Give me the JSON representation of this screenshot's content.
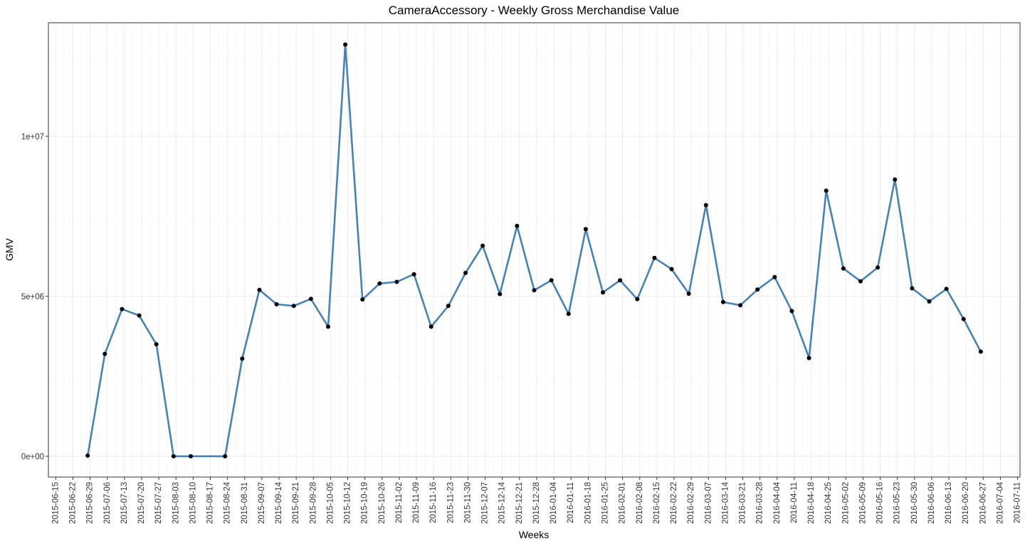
{
  "chart_data": {
    "type": "line",
    "title": "CameraAccessory - Weekly Gross Merchandise Value",
    "xlabel": "Weeks",
    "ylabel": "GMV",
    "x_ticks": [
      "2015-06-15",
      "2015-06-22",
      "2015-06-29",
      "2015-07-06",
      "2015-07-13",
      "2015-07-20",
      "2015-07-27",
      "2015-08-03",
      "2015-08-10",
      "2015-08-17",
      "2015-08-24",
      "2015-08-31",
      "2015-09-07",
      "2015-09-14",
      "2015-09-21",
      "2015-09-28",
      "2015-10-05",
      "2015-10-12",
      "2015-10-19",
      "2015-10-26",
      "2015-11-02",
      "2015-11-09",
      "2015-11-16",
      "2015-11-23",
      "2015-11-30",
      "2015-12-07",
      "2015-12-14",
      "2015-12-21",
      "2015-12-28",
      "2016-01-04",
      "2016-01-11",
      "2016-01-18",
      "2016-01-25",
      "2016-02-01",
      "2016-02-08",
      "2016-02-15",
      "2016-02-22",
      "2016-02-29",
      "2016-03-07",
      "2016-03-14",
      "2016-03-21",
      "2016-03-28",
      "2016-04-04",
      "2016-04-11",
      "2016-04-18",
      "2016-04-25",
      "2016-05-02",
      "2016-05-09",
      "2016-05-16",
      "2016-05-23",
      "2016-05-30",
      "2016-06-06",
      "2016-06-13",
      "2016-06-20",
      "2016-06-27",
      "2016-07-04",
      "2016-07-11"
    ],
    "x_range": [
      "2015-06-12",
      "2016-07-12"
    ],
    "y_ticks": [
      {
        "value": 0,
        "label": "0e+00"
      },
      {
        "value": 5000000,
        "label": "5e+06"
      },
      {
        "value": 10000000,
        "label": "1e+07"
      }
    ],
    "ylim": [
      -650000,
      13550000
    ],
    "grid": true,
    "colors": {
      "line": "#4682b4",
      "point": "#000000",
      "grid": "#ebebeb",
      "border": "#333333"
    },
    "series": [
      {
        "x": [
          "2015-06-28",
          "2015-07-05",
          "2015-07-12",
          "2015-07-19",
          "2015-07-26",
          "2015-08-02",
          "2015-08-09",
          "2015-08-23",
          "2015-08-30",
          "2015-09-06",
          "2015-09-13",
          "2015-09-20",
          "2015-09-27",
          "2015-10-04",
          "2015-10-11",
          "2015-10-18",
          "2015-10-25",
          "2015-11-01",
          "2015-11-08",
          "2015-11-15",
          "2015-11-22",
          "2015-11-29",
          "2015-12-06",
          "2015-12-13",
          "2015-12-20",
          "2015-12-27",
          "2016-01-03",
          "2016-01-10",
          "2016-01-17",
          "2016-01-24",
          "2016-01-31",
          "2016-02-07",
          "2016-02-14",
          "2016-02-21",
          "2016-02-28",
          "2016-03-06",
          "2016-03-13",
          "2016-03-20",
          "2016-03-27",
          "2016-04-03",
          "2016-04-10",
          "2016-04-17",
          "2016-04-24",
          "2016-05-01",
          "2016-05-08",
          "2016-05-15",
          "2016-05-22",
          "2016-05-29",
          "2016-06-05",
          "2016-06-12",
          "2016-06-19",
          "2016-06-26"
        ],
        "values": [
          20000,
          3200000,
          4600000,
          4400000,
          3500000,
          0,
          0,
          0,
          3050000,
          5200000,
          4750000,
          4700000,
          4920000,
          4050000,
          12870000,
          4900000,
          5400000,
          5450000,
          5690000,
          4050000,
          4700000,
          5730000,
          6580000,
          5070000,
          7200000,
          5190000,
          5500000,
          4450000,
          7100000,
          5120000,
          5500000,
          4910000,
          6200000,
          5850000,
          5080000,
          7850000,
          4820000,
          4720000,
          5210000,
          5600000,
          4540000,
          3070000,
          8300000,
          5870000,
          5470000,
          5900000,
          8650000,
          5250000,
          4840000,
          5230000,
          4290000,
          3270000
        ]
      }
    ]
  }
}
